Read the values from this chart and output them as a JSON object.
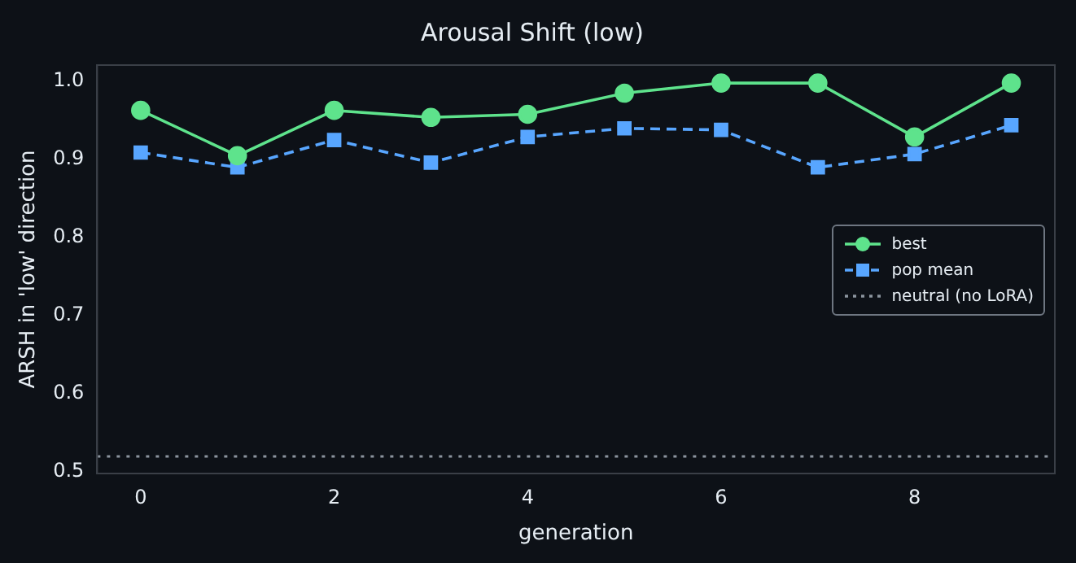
{
  "chart_data": {
    "type": "line",
    "title": "Arousal Shift (low)",
    "xlabel": "generation",
    "ylabel": "ARSH in 'low' direction",
    "x": [
      0,
      1,
      2,
      3,
      4,
      5,
      6,
      7,
      8,
      9
    ],
    "series": [
      {
        "name": "best",
        "color": "#5ee38c",
        "marker": "circle",
        "line_style": "solid",
        "values": [
          0.963,
          0.905,
          0.963,
          0.954,
          0.958,
          0.985,
          0.998,
          0.998,
          0.929,
          0.998
        ]
      },
      {
        "name": "pop mean",
        "color": "#58a6ff",
        "marker": "square",
        "line_style": "dashed",
        "values": [
          0.909,
          0.89,
          0.925,
          0.896,
          0.929,
          0.94,
          0.938,
          0.89,
          0.907,
          0.944
        ]
      }
    ],
    "ref_lines": [
      {
        "axis": "y",
        "value": 0.52,
        "label": "neutral (no LoRA)",
        "color": "#8b949e",
        "line_style": "dotted"
      }
    ],
    "xlim": [
      -0.45,
      9.45
    ],
    "xticks": [
      0,
      2,
      4,
      6,
      8
    ],
    "ylim": [
      0.498,
      1.021
    ],
    "yticks": [
      {
        "value": 0.5,
        "label": "0.5"
      },
      {
        "value": 0.6,
        "label": "0.6"
      },
      {
        "value": 0.7,
        "label": "0.7"
      },
      {
        "value": 0.8,
        "label": "0.8"
      },
      {
        "value": 0.9,
        "label": "0.9"
      },
      {
        "value": 1,
        "label": "1.0"
      }
    ],
    "grid": false,
    "legend": "right"
  }
}
